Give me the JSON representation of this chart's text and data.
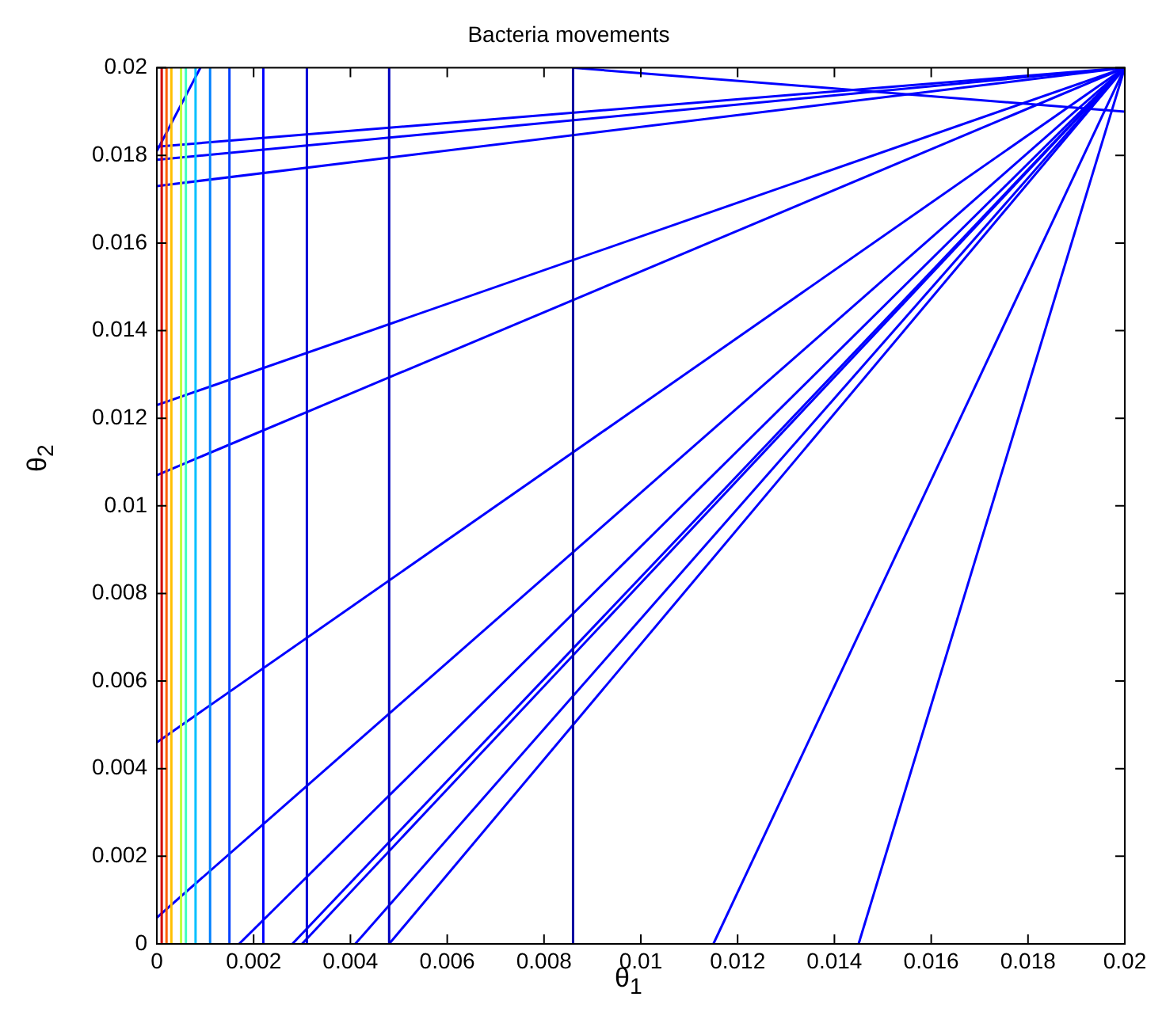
{
  "chart_data": {
    "type": "line",
    "title": "Bacteria movements",
    "xlabel": "θ$_{1}$",
    "ylabel": "θ$_{2}$",
    "xlim": [
      0,
      0.02
    ],
    "ylim": [
      0,
      0.02
    ],
    "xticks": [
      0,
      0.002,
      0.004,
      0.006,
      0.008,
      0.01,
      0.012,
      0.014,
      0.016,
      0.018,
      0.02
    ],
    "yticks": [
      0,
      0.002,
      0.004,
      0.006,
      0.008,
      0.01,
      0.012,
      0.014,
      0.016,
      0.018,
      0.02
    ],
    "grid": false,
    "legend": false,
    "marker": "none",
    "line_style": "solid",
    "series": [
      {
        "color": "#d00000",
        "x": [
          0.0001,
          0.0001
        ],
        "values": [
          0,
          0.02
        ]
      },
      {
        "color": "#ff6000",
        "x": [
          0.0002,
          0.0002
        ],
        "values": [
          0,
          0.02
        ]
      },
      {
        "color": "#ffc000",
        "x": [
          0.0003,
          0.0003
        ],
        "values": [
          0,
          0.02
        ]
      },
      {
        "color": "#c0ff40",
        "x": [
          0.0005,
          0.0005
        ],
        "values": [
          0,
          0.02
        ]
      },
      {
        "color": "#40ffc0",
        "x": [
          0.0006,
          0.0006
        ],
        "values": [
          0,
          0.02
        ]
      },
      {
        "color": "#00c0ff",
        "x": [
          0.0008,
          0.0008
        ],
        "values": [
          0,
          0.02
        ]
      },
      {
        "color": "#0080ff",
        "x": [
          0.0011,
          0.0011
        ],
        "values": [
          0,
          0.02
        ]
      },
      {
        "color": "#0040ff",
        "x": [
          0.0015,
          0.0015
        ],
        "values": [
          0,
          0.02
        ]
      },
      {
        "color": "#0000ff",
        "x": [
          0.0022,
          0.0022
        ],
        "values": [
          0,
          0.02
        ]
      },
      {
        "color": "#0000d8",
        "x": [
          0.0031,
          0.0031
        ],
        "values": [
          0,
          0.02
        ]
      },
      {
        "color": "#0000c0",
        "x": [
          0.0048,
          0.0048
        ],
        "values": [
          0,
          0.02
        ]
      },
      {
        "color": "#0000a0",
        "x": [
          0.0086,
          0.0086
        ],
        "values": [
          0,
          0.02
        ]
      },
      {
        "color": "#0000ff",
        "x": [
          0,
          0.02
        ],
        "values": [
          0.0182,
          0.02
        ]
      },
      {
        "color": "#0000ff",
        "x": [
          0,
          0.02
        ],
        "values": [
          0.0179,
          0.02
        ]
      },
      {
        "color": "#0000ff",
        "x": [
          0,
          0.02
        ],
        "values": [
          0.0173,
          0.02
        ]
      },
      {
        "color": "#0000ff",
        "x": [
          0,
          0.02
        ],
        "values": [
          0.0123,
          0.02
        ]
      },
      {
        "color": "#0000ff",
        "x": [
          0,
          0.02
        ],
        "values": [
          0.0107,
          0.02
        ]
      },
      {
        "color": "#0000ff",
        "x": [
          0,
          0.02
        ],
        "values": [
          0.0046,
          0.02
        ]
      },
      {
        "color": "#0000ff",
        "x": [
          0,
          0.02
        ],
        "values": [
          0.0006,
          0.02
        ]
      },
      {
        "color": "#0000ff",
        "x": [
          0.0017,
          0.02
        ],
        "values": [
          0,
          0.02
        ]
      },
      {
        "color": "#0000ff",
        "x": [
          0.0028,
          0.02
        ],
        "values": [
          0,
          0.02
        ]
      },
      {
        "color": "#0000ff",
        "x": [
          0.003,
          0.02
        ],
        "values": [
          0,
          0.02
        ]
      },
      {
        "color": "#0000ff",
        "x": [
          0.0041,
          0.02
        ],
        "values": [
          0,
          0.02
        ]
      },
      {
        "color": "#0000ff",
        "x": [
          0.0048,
          0.02
        ],
        "values": [
          0,
          0.02
        ]
      },
      {
        "color": "#0000ff",
        "x": [
          0.0115,
          0.02
        ],
        "values": [
          0,
          0.02
        ]
      },
      {
        "color": "#0000ff",
        "x": [
          0.0145,
          0.02
        ],
        "values": [
          0,
          0.02
        ]
      },
      {
        "color": "#0000ff",
        "x": [
          0,
          0.0009
        ],
        "values": [
          0.0181,
          0.02
        ]
      },
      {
        "color": "#0000ff",
        "x": [
          0.0086,
          0.02
        ],
        "values": [
          0.02,
          0.019
        ]
      }
    ]
  }
}
